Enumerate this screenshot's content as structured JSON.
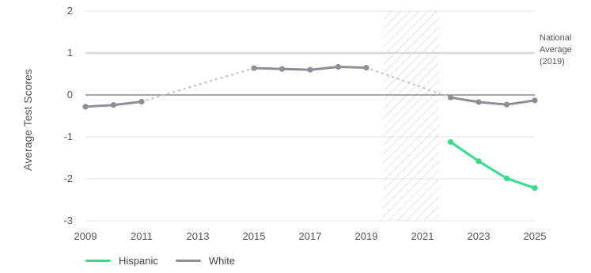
{
  "chart_data": {
    "type": "line",
    "title": "",
    "xlabel": "",
    "ylabel": "Average Test Scores",
    "xlim": [
      2009,
      2025
    ],
    "ylim": [
      -3,
      2
    ],
    "xticks": [
      "2009",
      "2011",
      "2013",
      "2015",
      "2017",
      "2019",
      "2021",
      "2023",
      "2025"
    ],
    "yticks": [
      "2",
      "1",
      "0",
      "-1",
      "-2",
      "-3"
    ],
    "grid": "horizontal",
    "reference_line": {
      "y": 1,
      "label": [
        "National",
        "Average",
        "(2019)"
      ],
      "color": "#d9d9d9"
    },
    "zero_line": {
      "y": 0,
      "color": "#8a8a8a"
    },
    "shaded_region": {
      "x_start": 2019.6,
      "x_end": 2021.6,
      "pattern": "diagonal-hatch"
    },
    "series": [
      {
        "name": "White",
        "color": "#8d8f96",
        "segments": [
          {
            "style": "solid",
            "points": [
              [
                2009,
                -0.28
              ],
              [
                2010,
                -0.24
              ],
              [
                2011,
                -0.16
              ]
            ]
          },
          {
            "style": "dotted",
            "points": [
              [
                2011,
                -0.16
              ],
              [
                2015,
                0.64
              ]
            ]
          },
          {
            "style": "solid",
            "points": [
              [
                2015,
                0.64
              ],
              [
                2016,
                0.62
              ],
              [
                2017,
                0.6
              ],
              [
                2018,
                0.67
              ],
              [
                2019,
                0.65
              ]
            ]
          },
          {
            "style": "dotted",
            "points": [
              [
                2019,
                0.65
              ],
              [
                2022,
                -0.06
              ]
            ]
          },
          {
            "style": "solid",
            "points": [
              [
                2022,
                -0.06
              ],
              [
                2023,
                -0.17
              ],
              [
                2024,
                -0.23
              ],
              [
                2025,
                -0.13
              ]
            ]
          }
        ]
      },
      {
        "name": "Hispanic",
        "color": "#35dd8a",
        "segments": [
          {
            "style": "solid",
            "points": [
              [
                2022,
                -1.12
              ],
              [
                2023,
                -1.58
              ],
              [
                2024,
                -1.99
              ],
              [
                2025,
                -2.22
              ]
            ]
          }
        ]
      }
    ],
    "legend": {
      "placement": "bottom-left",
      "items": [
        {
          "name": "Hispanic",
          "color": "#35dd8a"
        },
        {
          "name": "White",
          "color": "#8d8f96"
        }
      ]
    }
  }
}
